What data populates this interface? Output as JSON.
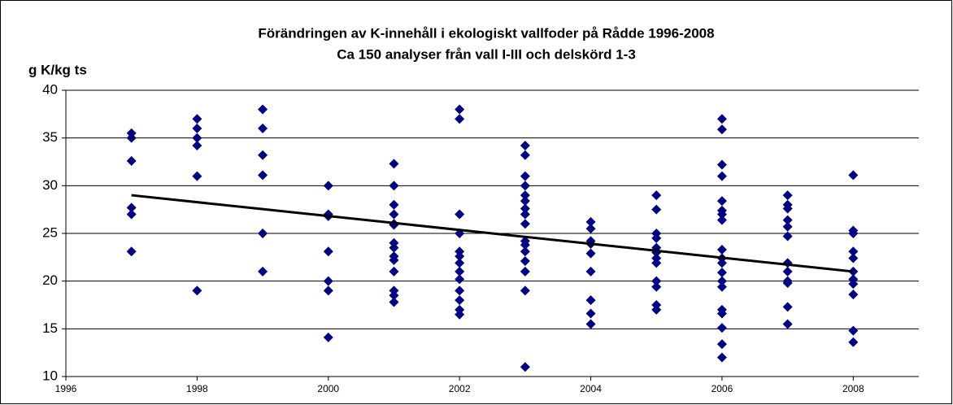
{
  "chart_data": {
    "type": "scatter",
    "title": "Förändringen av K-innehåll i ekologiskt vallfoder på Rådde 1996-2008",
    "subtitle": "Ca 150 analyser från vall I-III och delskörd 1-3",
    "y_label": "g K/kg ts",
    "color": "#000080",
    "x": [
      1997,
      1997,
      1997,
      1997,
      1997,
      1997,
      1998,
      1998,
      1998,
      1998,
      1998,
      1998,
      1999,
      1999,
      1999,
      1999,
      1999,
      1999,
      2000,
      2000,
      2000,
      2000,
      2000,
      2000,
      2000,
      2001,
      2001,
      2001,
      2001,
      2001,
      2001,
      2001,
      2001,
      2001,
      2001,
      2001,
      2001,
      2001,
      2001,
      2002,
      2002,
      2002,
      2002,
      2002,
      2002,
      2002,
      2002,
      2002,
      2002,
      2002,
      2002,
      2002,
      2003,
      2003,
      2003,
      2003,
      2003,
      2003,
      2003,
      2003,
      2003,
      2003,
      2003,
      2003,
      2003,
      2003,
      2003,
      2003,
      2004,
      2004,
      2004,
      2004,
      2004,
      2004,
      2004,
      2004,
      2004,
      2005,
      2005,
      2005,
      2005,
      2005,
      2005,
      2005,
      2005,
      2005,
      2005,
      2005,
      2005,
      2006,
      2006,
      2006,
      2006,
      2006,
      2006,
      2006,
      2006,
      2006,
      2006,
      2006,
      2006,
      2006,
      2006,
      2006,
      2006,
      2006,
      2006,
      2006,
      2007,
      2007,
      2007,
      2007,
      2007,
      2007,
      2007,
      2007,
      2007,
      2007,
      2007,
      2007,
      2008,
      2008,
      2008,
      2008,
      2008,
      2008,
      2008,
      2008,
      2008,
      2008,
      2008
    ],
    "values": [
      35.5,
      35,
      32.6,
      27.7,
      27,
      23.1,
      37,
      36,
      35,
      34.2,
      31,
      19,
      38,
      36,
      33.2,
      31.1,
      25,
      21,
      30,
      27,
      26.8,
      23.1,
      20,
      19,
      14.1,
      32.3,
      30,
      28,
      27,
      26,
      25.9,
      24,
      23.5,
      22.6,
      22.2,
      21,
      19,
      18.5,
      17.8,
      38,
      37,
      27,
      25,
      23.1,
      22.6,
      21.9,
      21,
      20.2,
      19,
      18,
      17,
      16.5,
      34.2,
      33.2,
      31,
      30,
      29,
      28.4,
      27.6,
      27,
      26,
      24.2,
      23.8,
      23.1,
      22.1,
      21,
      19,
      11,
      26.2,
      25.5,
      24.2,
      23.9,
      22.9,
      21,
      18,
      16.6,
      15.5,
      29,
      27.5,
      25,
      24.5,
      23.5,
      23,
      22.4,
      21.9,
      20,
      19.4,
      17.5,
      17,
      37,
      35.9,
      32.2,
      31,
      28.4,
      27.4,
      27,
      26.4,
      23.3,
      22.4,
      21.9,
      20.9,
      20,
      19.4,
      17,
      16.6,
      15.1,
      13.4,
      12,
      29,
      28,
      27.6,
      26.4,
      25.7,
      24.7,
      21.9,
      21,
      20,
      19.8,
      17.3,
      15.5,
      31.1,
      25.3,
      25,
      23.1,
      22.4,
      21,
      20.2,
      19.7,
      18.6,
      14.8,
      13.6
    ],
    "trendline": {
      "x": [
        1997,
        2008
      ],
      "values": [
        29,
        21
      ],
      "color": "#000000"
    },
    "xlim": [
      1996,
      2009
    ],
    "xticks": [
      1996,
      1998,
      2000,
      2002,
      2004,
      2006,
      2008
    ],
    "ylim": [
      10,
      40
    ],
    "yticks": [
      10,
      15,
      20,
      25,
      30,
      35,
      40
    ],
    "grid": true
  }
}
